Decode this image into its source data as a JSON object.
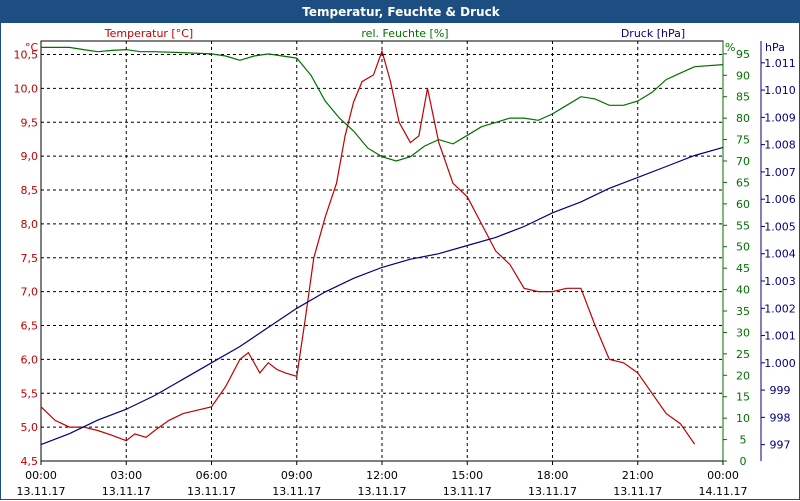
{
  "window": {
    "title": "Temperatur, Feuchte & Druck"
  },
  "chart_data": {
    "type": "line",
    "title": "Temperatur, Feuchte & Druck",
    "grid": true,
    "x_ticks": [
      {
        "t": "00:00",
        "d": "13.11.17"
      },
      {
        "t": "03:00",
        "d": "13.11.17"
      },
      {
        "t": "06:00",
        "d": "13.11.17"
      },
      {
        "t": "09:00",
        "d": "13.11.17"
      },
      {
        "t": "12:00",
        "d": "13.11.17"
      },
      {
        "t": "15:00",
        "d": "13.11.17"
      },
      {
        "t": "18:00",
        "d": "13.11.17"
      },
      {
        "t": "21:00",
        "d": "13.11.17"
      },
      {
        "t": "00:00",
        "d": "14.11.17"
      }
    ],
    "x_range_hours": [
      0,
      24
    ],
    "axes": {
      "temperature": {
        "label": "Temperatur [°C]",
        "unit": "°C",
        "color": "#c00000",
        "range": [
          4.5,
          10.7
        ],
        "ticks": [
          "4,5",
          "5,0",
          "5,5",
          "6,0",
          "6,5",
          "7,0",
          "7,5",
          "8,0",
          "8,5",
          "9,0",
          "9,5",
          "10,0",
          "10,5"
        ]
      },
      "humidity": {
        "label": "rel. Feuchte [%]",
        "unit": "%",
        "color": "#007000",
        "range": [
          0,
          98
        ],
        "ticks": [
          "0",
          "5",
          "10",
          "15",
          "20",
          "25",
          "30",
          "35",
          "40",
          "45",
          "50",
          "55",
          "60",
          "65",
          "70",
          "75",
          "80",
          "85",
          "90",
          "95"
        ]
      },
      "pressure": {
        "label": "Druck [hPa]",
        "unit": "hPa",
        "color": "#000080",
        "range": [
          996.4,
          1011.8
        ],
        "ticks": [
          "997",
          "998",
          "999",
          "1.000",
          "1.001",
          "1.002",
          "1.003",
          "1.004",
          "1.005",
          "1.006",
          "1.007",
          "1.008",
          "1.009",
          "1.010",
          "1.011"
        ]
      }
    },
    "series": [
      {
        "name": "Temperatur [°C]",
        "axis": "temperature",
        "color": "#c00000",
        "points": [
          [
            0,
            5.3
          ],
          [
            0.5,
            5.1
          ],
          [
            1,
            5.0
          ],
          [
            1.5,
            5.0
          ],
          [
            2,
            4.95
          ],
          [
            2.5,
            4.88
          ],
          [
            3,
            4.8
          ],
          [
            3.3,
            4.9
          ],
          [
            3.7,
            4.85
          ],
          [
            4,
            4.95
          ],
          [
            4.5,
            5.1
          ],
          [
            5,
            5.2
          ],
          [
            5.5,
            5.25
          ],
          [
            6,
            5.3
          ],
          [
            6.5,
            5.6
          ],
          [
            7,
            6.0
          ],
          [
            7.3,
            6.1
          ],
          [
            7.7,
            5.8
          ],
          [
            8,
            5.95
          ],
          [
            8.3,
            5.85
          ],
          [
            8.6,
            5.8
          ],
          [
            9,
            5.75
          ],
          [
            9.3,
            6.6
          ],
          [
            9.6,
            7.5
          ],
          [
            10,
            8.1
          ],
          [
            10.4,
            8.6
          ],
          [
            10.7,
            9.3
          ],
          [
            11,
            9.8
          ],
          [
            11.3,
            10.1
          ],
          [
            11.7,
            10.2
          ],
          [
            12,
            10.55
          ],
          [
            12.3,
            10.1
          ],
          [
            12.6,
            9.5
          ],
          [
            13,
            9.2
          ],
          [
            13.3,
            9.3
          ],
          [
            13.6,
            10.0
          ],
          [
            14,
            9.2
          ],
          [
            14.5,
            8.6
          ],
          [
            15,
            8.4
          ],
          [
            15.5,
            8.0
          ],
          [
            16,
            7.6
          ],
          [
            16.5,
            7.4
          ],
          [
            17,
            7.05
          ],
          [
            17.5,
            7.0
          ],
          [
            18,
            7.0
          ],
          [
            18.5,
            7.05
          ],
          [
            19,
            7.05
          ],
          [
            19.5,
            6.5
          ],
          [
            20,
            6.0
          ],
          [
            20.5,
            5.95
          ],
          [
            21,
            5.8
          ],
          [
            21.5,
            5.5
          ],
          [
            22,
            5.2
          ],
          [
            22.5,
            5.05
          ],
          [
            23,
            4.75
          ]
        ]
      },
      {
        "name": "rel. Feuchte [%]",
        "axis": "humidity",
        "color": "#007000",
        "points": [
          [
            0,
            96.5
          ],
          [
            1,
            96.5
          ],
          [
            1.5,
            96.0
          ],
          [
            2,
            95.5
          ],
          [
            2.5,
            95.8
          ],
          [
            3,
            96
          ],
          [
            3.5,
            95.5
          ],
          [
            4,
            95.5
          ],
          [
            5,
            95.3
          ],
          [
            6,
            95.0
          ],
          [
            6.5,
            94.5
          ],
          [
            7,
            93.5
          ],
          [
            7.5,
            94.5
          ],
          [
            8,
            95
          ],
          [
            8.5,
            94.5
          ],
          [
            9,
            94
          ],
          [
            9.5,
            90
          ],
          [
            10,
            84
          ],
          [
            10.5,
            80
          ],
          [
            11,
            77
          ],
          [
            11.5,
            73
          ],
          [
            12,
            71
          ],
          [
            12.5,
            70
          ],
          [
            13,
            71
          ],
          [
            13.5,
            73.5
          ],
          [
            14,
            75
          ],
          [
            14.5,
            74
          ],
          [
            15,
            76
          ],
          [
            15.5,
            78
          ],
          [
            16,
            79
          ],
          [
            16.5,
            80
          ],
          [
            17,
            80
          ],
          [
            17.5,
            79.5
          ],
          [
            18,
            81
          ],
          [
            18.5,
            83
          ],
          [
            19,
            85
          ],
          [
            19.5,
            84.5
          ],
          [
            20,
            83
          ],
          [
            20.5,
            83
          ],
          [
            21,
            84
          ],
          [
            21.5,
            86
          ],
          [
            22,
            89
          ],
          [
            22.5,
            90.5
          ],
          [
            23,
            92
          ],
          [
            24,
            92.5
          ]
        ]
      },
      {
        "name": "Druck [hPa]",
        "axis": "pressure",
        "color": "#000080",
        "points": [
          [
            0,
            997.0
          ],
          [
            1,
            997.4
          ],
          [
            2,
            997.9
          ],
          [
            3,
            998.3
          ],
          [
            4,
            998.8
          ],
          [
            5,
            999.4
          ],
          [
            6,
            1000.0
          ],
          [
            7,
            1000.6
          ],
          [
            8,
            1001.3
          ],
          [
            9,
            1002.0
          ],
          [
            10,
            1002.6
          ],
          [
            11,
            1003.1
          ],
          [
            12,
            1003.5
          ],
          [
            13,
            1003.8
          ],
          [
            14,
            1004.0
          ],
          [
            15,
            1004.3
          ],
          [
            16,
            1004.6
          ],
          [
            17,
            1005.0
          ],
          [
            18,
            1005.5
          ],
          [
            19,
            1005.9
          ],
          [
            20,
            1006.4
          ],
          [
            21,
            1006.8
          ],
          [
            22,
            1007.2
          ],
          [
            23,
            1007.6
          ],
          [
            24,
            1007.9
          ]
        ]
      }
    ]
  }
}
